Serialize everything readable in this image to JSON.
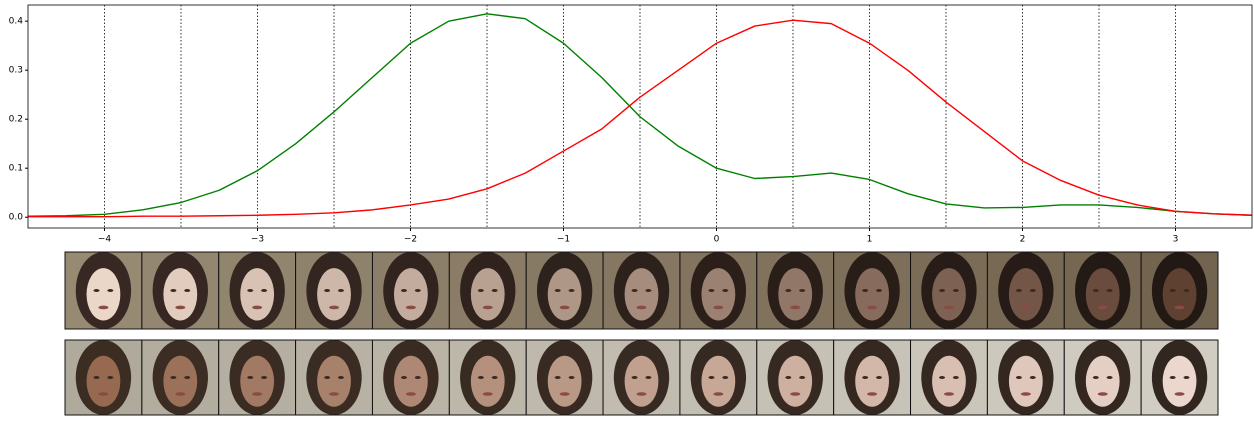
{
  "chart_data": {
    "type": "line",
    "x": [
      -4.5,
      -4.25,
      -4,
      -3.75,
      -3.5,
      -3.25,
      -3,
      -2.75,
      -2.5,
      -2.25,
      -2,
      -1.75,
      -1.5,
      -1.25,
      -1,
      -0.75,
      -0.5,
      -0.25,
      0,
      0.25,
      0.5,
      0.75,
      1,
      1.25,
      1.5,
      1.75,
      2,
      2.25,
      2.5,
      2.75,
      3,
      3.25,
      3.5
    ],
    "series": [
      {
        "color": "#008000",
        "values": [
          0.002,
          0.003,
          0.006,
          0.015,
          0.03,
          0.055,
          0.095,
          0.15,
          0.215,
          0.285,
          0.355,
          0.4,
          0.415,
          0.405,
          0.355,
          0.285,
          0.205,
          0.145,
          0.1,
          0.079,
          0.083,
          0.09,
          0.077,
          0.048,
          0.027,
          0.019,
          0.02,
          0.025,
          0.025,
          0.02,
          0.012,
          0.007,
          0.004
        ]
      },
      {
        "color": "#ff0000",
        "values": [
          0.001,
          0.001,
          0.001,
          0.002,
          0.002,
          0.003,
          0.004,
          0.006,
          0.009,
          0.015,
          0.025,
          0.037,
          0.058,
          0.09,
          0.135,
          0.18,
          0.245,
          0.3,
          0.355,
          0.39,
          0.402,
          0.395,
          0.355,
          0.3,
          0.235,
          0.175,
          0.115,
          0.075,
          0.045,
          0.025,
          0.012,
          0.007,
          0.004
        ]
      }
    ],
    "xlim": [
      -4.5,
      3.5
    ],
    "ylim": [
      -0.022,
      0.433
    ],
    "xticks": [
      {
        "value": -4,
        "label": "−4"
      },
      {
        "value": -3,
        "label": "−3"
      },
      {
        "value": -2,
        "label": "−2"
      },
      {
        "value": -1,
        "label": "−1"
      },
      0,
      1,
      2,
      3
    ],
    "yticks": [
      {
        "value": 0,
        "label": "0.0"
      },
      0.1,
      0.2,
      0.3,
      0.4
    ],
    "vlines": [
      -4,
      -3.5,
      -3,
      -2.5,
      -2,
      -1.5,
      -1,
      -0.5,
      0,
      0.5,
      1,
      1.5,
      2,
      2.5,
      3
    ]
  }
}
